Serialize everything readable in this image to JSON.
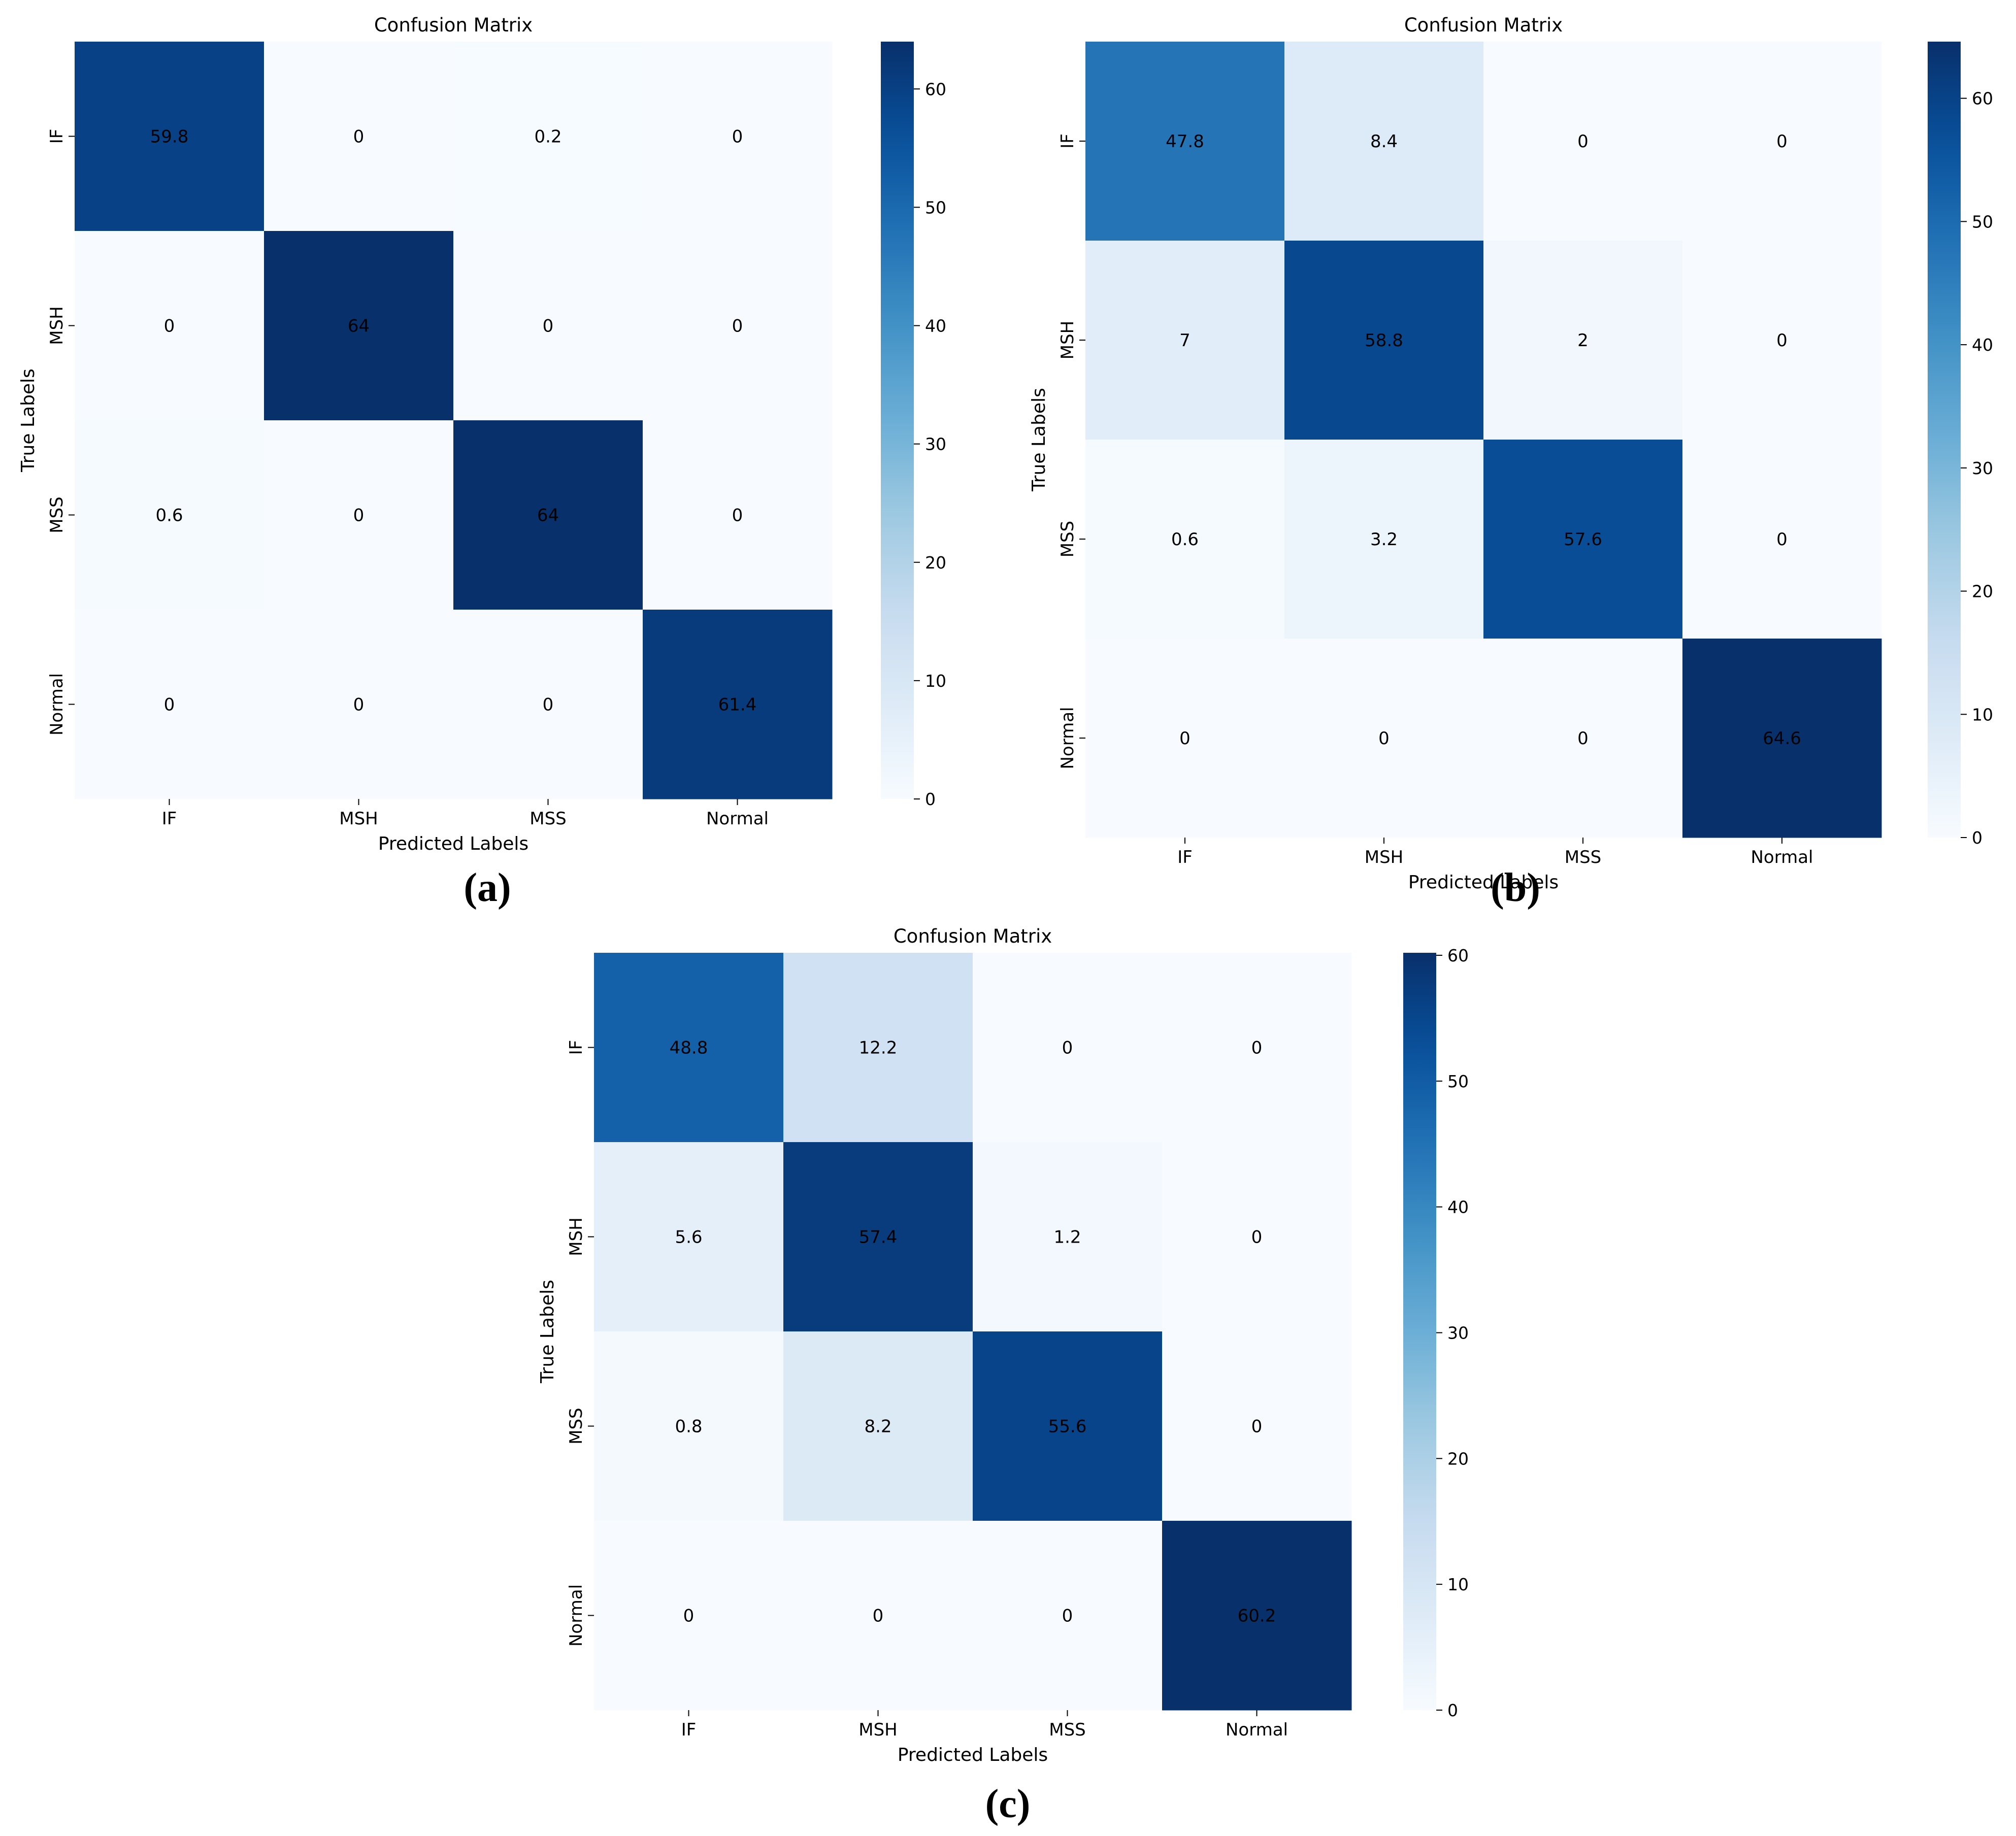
{
  "chart_data": [
    {
      "panel": "(a)",
      "type": "heatmap",
      "title": "Confusion Matrix",
      "xlabel": "Predicted Labels",
      "ylabel": "True Labels",
      "categories_x": [
        "IF",
        "MSH",
        "MSS",
        "Normal"
      ],
      "categories_y": [
        "IF",
        "MSH",
        "MSS",
        "Normal"
      ],
      "values": [
        [
          59.8,
          0,
          0.2,
          0
        ],
        [
          0,
          64,
          0,
          0
        ],
        [
          0.6,
          0,
          64,
          0
        ],
        [
          0,
          0,
          0,
          61.4
        ]
      ],
      "value_labels": [
        [
          "59.8",
          "0",
          "0.2",
          "0"
        ],
        [
          "0",
          "64",
          "0",
          "0"
        ],
        [
          "0.6",
          "0",
          "64",
          "0"
        ],
        [
          "0",
          "0",
          "0",
          "61.4"
        ]
      ],
      "colorbar": {
        "vmin": 0,
        "vmax": 64,
        "ticks": [
          0,
          10,
          20,
          30,
          40,
          50,
          60
        ]
      },
      "colormap": "Blues"
    },
    {
      "panel": "(b)",
      "type": "heatmap",
      "title": "Confusion Matrix",
      "xlabel": "Predicted Labels",
      "ylabel": "True Labels",
      "categories_x": [
        "IF",
        "MSH",
        "MSS",
        "Normal"
      ],
      "categories_y": [
        "IF",
        "MSH",
        "MSS",
        "Normal"
      ],
      "values": [
        [
          47.8,
          8.4,
          0,
          0
        ],
        [
          7,
          58.8,
          2,
          0
        ],
        [
          0.6,
          3.2,
          57.6,
          0
        ],
        [
          0,
          0,
          0,
          64.6
        ]
      ],
      "value_labels": [
        [
          "47.8",
          "8.4",
          "0",
          "0"
        ],
        [
          "7",
          "58.8",
          "2",
          "0"
        ],
        [
          "0.6",
          "3.2",
          "57.6",
          "0"
        ],
        [
          "0",
          "0",
          "0",
          "64.6"
        ]
      ],
      "colorbar": {
        "vmin": 0,
        "vmax": 64.6,
        "ticks": [
          0,
          10,
          20,
          30,
          40,
          50,
          60
        ]
      },
      "colormap": "Blues"
    },
    {
      "panel": "(c)",
      "type": "heatmap",
      "title": "Confusion Matrix",
      "xlabel": "Predicted Labels",
      "ylabel": "True Labels",
      "categories_x": [
        "IF",
        "MSH",
        "MSS",
        "Normal"
      ],
      "categories_y": [
        "IF",
        "MSH",
        "MSS",
        "Normal"
      ],
      "values": [
        [
          48.8,
          12.2,
          0,
          0
        ],
        [
          5.6,
          57.4,
          1.2,
          0
        ],
        [
          0.8,
          8.2,
          55.6,
          0
        ],
        [
          0,
          0,
          0,
          60.2
        ]
      ],
      "value_labels": [
        [
          "48.8",
          "12.2",
          "0",
          "0"
        ],
        [
          "5.6",
          "57.4",
          "1.2",
          "0"
        ],
        [
          "0.8",
          "8.2",
          "55.6",
          "0"
        ],
        [
          "0",
          "0",
          "0",
          "60.2"
        ]
      ],
      "colorbar": {
        "vmin": 0,
        "vmax": 60.2,
        "ticks": [
          0,
          10,
          20,
          30,
          40,
          50,
          60
        ]
      },
      "colormap": "Blues"
    }
  ]
}
